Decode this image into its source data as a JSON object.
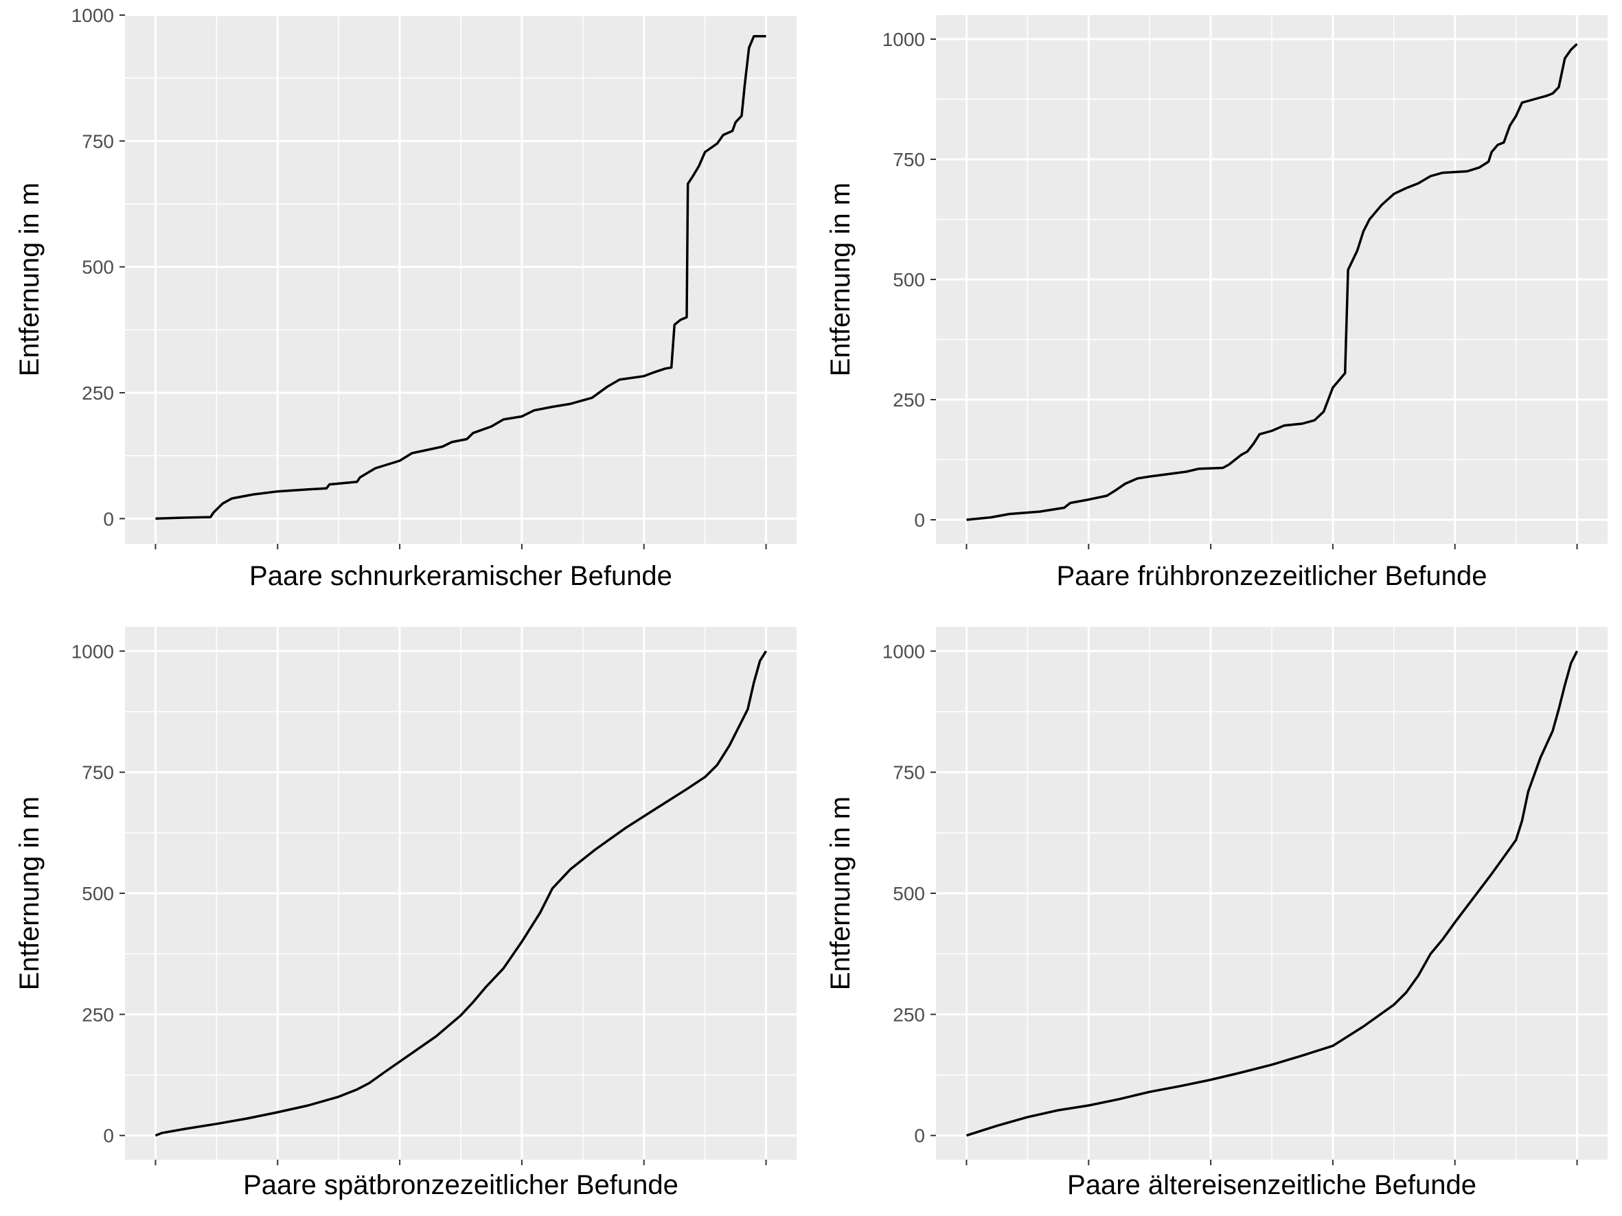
{
  "colors": {
    "panel_bg": "#EBEBEB",
    "grid": "#FFFFFF",
    "line": "#000000",
    "tick_text": "#4D4D4D"
  },
  "chart_data": [
    {
      "type": "line",
      "xlabel": "Paare schnurkeramischer Befunde",
      "ylabel": "Entfernung in m",
      "ylim": [
        -50,
        1000
      ],
      "xlim": [
        -0.05,
        1.05
      ],
      "yticks": [
        "0",
        "250",
        "500",
        "750",
        "1000"
      ],
      "x_tick_labels_shown": false,
      "grid": true,
      "series": [
        {
          "values": [
            [
              0,
              0
            ],
            [
              0.05,
              2
            ],
            [
              0.09,
              3
            ],
            [
              0.095,
              12
            ],
            [
              0.11,
              30
            ],
            [
              0.125,
              40
            ],
            [
              0.16,
              48
            ],
            [
              0.2,
              54
            ],
            [
              0.25,
              58
            ],
            [
              0.28,
              60
            ],
            [
              0.285,
              68
            ],
            [
              0.33,
              73
            ],
            [
              0.335,
              82
            ],
            [
              0.36,
              100
            ],
            [
              0.4,
              115
            ],
            [
              0.42,
              130
            ],
            [
              0.47,
              143
            ],
            [
              0.485,
              152
            ],
            [
              0.51,
              158
            ],
            [
              0.52,
              170
            ],
            [
              0.55,
              183
            ],
            [
              0.57,
              197
            ],
            [
              0.6,
              203
            ],
            [
              0.62,
              215
            ],
            [
              0.65,
              222
            ],
            [
              0.68,
              228
            ],
            [
              0.715,
              240
            ],
            [
              0.74,
              262
            ],
            [
              0.76,
              276
            ],
            [
              0.8,
              283
            ],
            [
              0.815,
              290
            ],
            [
              0.835,
              298
            ],
            [
              0.845,
              300
            ],
            [
              0.85,
              385
            ],
            [
              0.86,
              395
            ],
            [
              0.87,
              400
            ],
            [
              0.872,
              665
            ],
            [
              0.88,
              680
            ],
            [
              0.89,
              700
            ],
            [
              0.9,
              728
            ],
            [
              0.92,
              745
            ],
            [
              0.93,
              762
            ],
            [
              0.945,
              770
            ],
            [
              0.95,
              787
            ],
            [
              0.96,
              800
            ],
            [
              0.965,
              860
            ],
            [
              0.972,
              935
            ],
            [
              0.98,
              958
            ],
            [
              1.0,
              958
            ]
          ]
        }
      ]
    },
    {
      "type": "line",
      "xlabel": "Paare frühbronzezeitlicher Befunde",
      "ylabel": "Entfernung in m",
      "ylim": [
        -50,
        1050
      ],
      "xlim": [
        -0.05,
        1.05
      ],
      "yticks": [
        "0",
        "250",
        "500",
        "750",
        "1000"
      ],
      "x_tick_labels_shown": false,
      "grid": true,
      "series": [
        {
          "values": [
            [
              0,
              0
            ],
            [
              0.04,
              5
            ],
            [
              0.07,
              12
            ],
            [
              0.12,
              17
            ],
            [
              0.16,
              25
            ],
            [
              0.17,
              35
            ],
            [
              0.2,
              42
            ],
            [
              0.23,
              50
            ],
            [
              0.245,
              62
            ],
            [
              0.26,
              75
            ],
            [
              0.28,
              86
            ],
            [
              0.3,
              90
            ],
            [
              0.33,
              95
            ],
            [
              0.36,
              100
            ],
            [
              0.38,
              106
            ],
            [
              0.42,
              108
            ],
            [
              0.43,
              115
            ],
            [
              0.45,
              135
            ],
            [
              0.46,
              142
            ],
            [
              0.47,
              158
            ],
            [
              0.48,
              178
            ],
            [
              0.5,
              185
            ],
            [
              0.52,
              196
            ],
            [
              0.55,
              200
            ],
            [
              0.57,
              207
            ],
            [
              0.585,
              225
            ],
            [
              0.6,
              275
            ],
            [
              0.61,
              290
            ],
            [
              0.62,
              305
            ],
            [
              0.625,
              520
            ],
            [
              0.64,
              560
            ],
            [
              0.65,
              600
            ],
            [
              0.66,
              625
            ],
            [
              0.68,
              655
            ],
            [
              0.7,
              678
            ],
            [
              0.72,
              690
            ],
            [
              0.74,
              700
            ],
            [
              0.76,
              715
            ],
            [
              0.78,
              722
            ],
            [
              0.82,
              725
            ],
            [
              0.84,
              733
            ],
            [
              0.855,
              745
            ],
            [
              0.86,
              765
            ],
            [
              0.87,
              780
            ],
            [
              0.88,
              785
            ],
            [
              0.89,
              820
            ],
            [
              0.9,
              840
            ],
            [
              0.91,
              868
            ],
            [
              0.93,
              875
            ],
            [
              0.95,
              882
            ],
            [
              0.96,
              887
            ],
            [
              0.97,
              900
            ],
            [
              0.98,
              960
            ],
            [
              0.99,
              978
            ],
            [
              1.0,
              990
            ]
          ]
        }
      ]
    },
    {
      "type": "line",
      "xlabel": "Paare spätbronzezeitlicher Befunde",
      "ylabel": "Entfernung in m",
      "ylim": [
        -50,
        1050
      ],
      "xlim": [
        -0.05,
        1.05
      ],
      "yticks": [
        "0",
        "250",
        "500",
        "750",
        "1000"
      ],
      "x_tick_labels_shown": false,
      "grid": true,
      "series": [
        {
          "values": [
            [
              0,
              0
            ],
            [
              0.01,
              5
            ],
            [
              0.05,
              14
            ],
            [
              0.1,
              24
            ],
            [
              0.15,
              35
            ],
            [
              0.2,
              48
            ],
            [
              0.25,
              62
            ],
            [
              0.3,
              80
            ],
            [
              0.33,
              95
            ],
            [
              0.35,
              108
            ],
            [
              0.38,
              135
            ],
            [
              0.42,
              170
            ],
            [
              0.46,
              205
            ],
            [
              0.5,
              248
            ],
            [
              0.52,
              275
            ],
            [
              0.54,
              305
            ],
            [
              0.57,
              345
            ],
            [
              0.6,
              400
            ],
            [
              0.63,
              460
            ],
            [
              0.65,
              510
            ],
            [
              0.68,
              550
            ],
            [
              0.72,
              590
            ],
            [
              0.77,
              635
            ],
            [
              0.82,
              675
            ],
            [
              0.87,
              715
            ],
            [
              0.9,
              740
            ],
            [
              0.92,
              765
            ],
            [
              0.94,
              805
            ],
            [
              0.96,
              855
            ],
            [
              0.97,
              880
            ],
            [
              0.98,
              935
            ],
            [
              0.99,
              980
            ],
            [
              1.0,
              1000
            ]
          ]
        }
      ]
    },
    {
      "type": "line",
      "xlabel": "Paare ältereisenzeitliche Befunde",
      "ylabel": "Entfernung in m",
      "ylim": [
        -50,
        1050
      ],
      "xlim": [
        -0.05,
        1.05
      ],
      "yticks": [
        "0",
        "250",
        "500",
        "750",
        "1000"
      ],
      "x_tick_labels_shown": false,
      "grid": true,
      "series": [
        {
          "values": [
            [
              0,
              0
            ],
            [
              0.05,
              20
            ],
            [
              0.1,
              38
            ],
            [
              0.15,
              52
            ],
            [
              0.2,
              62
            ],
            [
              0.25,
              75
            ],
            [
              0.3,
              90
            ],
            [
              0.35,
              102
            ],
            [
              0.4,
              115
            ],
            [
              0.45,
              130
            ],
            [
              0.5,
              146
            ],
            [
              0.55,
              165
            ],
            [
              0.6,
              185
            ],
            [
              0.65,
              225
            ],
            [
              0.7,
              270
            ],
            [
              0.72,
              295
            ],
            [
              0.74,
              330
            ],
            [
              0.76,
              375
            ],
            [
              0.78,
              405
            ],
            [
              0.8,
              440
            ],
            [
              0.83,
              490
            ],
            [
              0.86,
              540
            ],
            [
              0.88,
              575
            ],
            [
              0.9,
              610
            ],
            [
              0.91,
              650
            ],
            [
              0.92,
              710
            ],
            [
              0.94,
              780
            ],
            [
              0.96,
              835
            ],
            [
              0.97,
              880
            ],
            [
              0.98,
              930
            ],
            [
              0.99,
              975
            ],
            [
              1.0,
              1000
            ]
          ]
        }
      ]
    }
  ]
}
